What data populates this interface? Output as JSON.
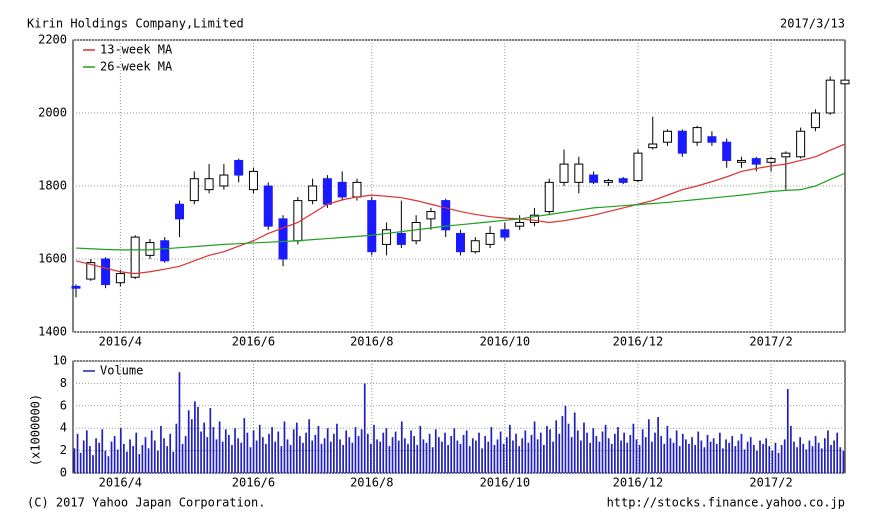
{
  "header": {
    "title": "Kirin Holdings Company,Limited",
    "date": "2017/3/13"
  },
  "footer": {
    "copyright": "(C) 2017 Yahoo Japan Corporation.",
    "url": "http://stocks.finance.yahoo.co.jp"
  },
  "chart_data": [
    {
      "type": "candlestick",
      "categories": [
        null,
        null,
        null,
        "2016/4",
        null,
        null,
        null,
        null,
        null,
        null,
        null,
        null,
        "2016/6",
        null,
        null,
        null,
        null,
        null,
        null,
        null,
        "2016/8",
        null,
        null,
        null,
        null,
        null,
        null,
        null,
        null,
        "2016/10",
        null,
        null,
        null,
        null,
        null,
        null,
        null,
        null,
        "2016/12",
        null,
        null,
        null,
        null,
        null,
        null,
        null,
        null,
        "2017/2",
        null,
        null,
        null,
        null,
        null
      ],
      "open": [
        1525,
        1545,
        1600,
        1535,
        1550,
        1610,
        1650,
        1750,
        1760,
        1790,
        1800,
        1870,
        1790,
        1800,
        1710,
        1650,
        1760,
        1820,
        1810,
        1770,
        1760,
        1640,
        1670,
        1650,
        1710,
        1760,
        1670,
        1620,
        1640,
        1680,
        1690,
        1700,
        1730,
        1810,
        1810,
        1830,
        1810,
        1820,
        1815,
        1905,
        1920,
        1950,
        1920,
        1935,
        1920,
        1865,
        1875,
        1865,
        1880,
        1880,
        1960,
        2000,
        2080
      ],
      "high": [
        1530,
        1600,
        1605,
        1570,
        1665,
        1655,
        1660,
        1760,
        1840,
        1860,
        1860,
        1875,
        1850,
        1810,
        1720,
        1770,
        1820,
        1830,
        1840,
        1820,
        1770,
        1700,
        1760,
        1720,
        1740,
        1765,
        1680,
        1660,
        1690,
        1700,
        1720,
        1740,
        1820,
        1900,
        1880,
        1840,
        1820,
        1825,
        1900,
        1990,
        1955,
        1955,
        1965,
        1950,
        1930,
        1880,
        1880,
        1880,
        1895,
        1960,
        2010,
        2100,
        2100
      ],
      "low": [
        1495,
        1540,
        1520,
        1525,
        1545,
        1600,
        1590,
        1660,
        1750,
        1780,
        1790,
        1810,
        1780,
        1680,
        1580,
        1640,
        1750,
        1740,
        1760,
        1760,
        1610,
        1610,
        1630,
        1640,
        1680,
        1660,
        1610,
        1615,
        1630,
        1650,
        1680,
        1690,
        1720,
        1800,
        1780,
        1805,
        1800,
        1805,
        1810,
        1900,
        1910,
        1880,
        1910,
        1910,
        1850,
        1850,
        1840,
        1840,
        1790,
        1875,
        1950,
        1995,
        2070
      ],
      "close": [
        1520,
        1590,
        1530,
        1560,
        1660,
        1645,
        1595,
        1710,
        1820,
        1820,
        1830,
        1830,
        1840,
        1690,
        1600,
        1760,
        1800,
        1750,
        1770,
        1810,
        1620,
        1680,
        1640,
        1700,
        1730,
        1680,
        1620,
        1650,
        1670,
        1660,
        1700,
        1720,
        1810,
        1860,
        1860,
        1810,
        1815,
        1810,
        1890,
        1915,
        1950,
        1890,
        1960,
        1920,
        1870,
        1870,
        1860,
        1875,
        1890,
        1950,
        2000,
        2090,
        2090
      ],
      "up_color": "#ffffff",
      "down_color": "#1a1aff",
      "series": [
        {
          "name": "13-week MA",
          "color": "#e03030",
          "values": [
            1595,
            1585,
            1575,
            1565,
            1560,
            1565,
            1572,
            1580,
            1595,
            1610,
            1620,
            1635,
            1650,
            1670,
            1685,
            1700,
            1725,
            1750,
            1762,
            1770,
            1775,
            1772,
            1768,
            1760,
            1750,
            1740,
            1730,
            1722,
            1716,
            1712,
            1710,
            1706,
            1700,
            1705,
            1712,
            1720,
            1730,
            1740,
            1750,
            1760,
            1775,
            1790,
            1800,
            1812,
            1825,
            1840,
            1848,
            1855,
            1860,
            1870,
            1880,
            1898,
            1915
          ]
        },
        {
          "name": "26-week MA",
          "color": "#20a020",
          "values": [
            1630,
            1628,
            1626,
            1625,
            1625,
            1625,
            1628,
            1631,
            1634,
            1637,
            1640,
            1642,
            1644,
            1646,
            1648,
            1650,
            1653,
            1656,
            1659,
            1662,
            1665,
            1670,
            1675,
            1680,
            1685,
            1690,
            1694,
            1698,
            1702,
            1706,
            1710,
            1716,
            1722,
            1728,
            1734,
            1740,
            1743,
            1746,
            1749,
            1752,
            1755,
            1759,
            1763,
            1767,
            1771,
            1775,
            1780,
            1785,
            1788,
            1790,
            1800,
            1818,
            1835
          ]
        }
      ],
      "ylim": [
        1400,
        2200
      ],
      "yticks": [
        1400,
        1600,
        1800,
        2000,
        2200
      ],
      "grid": true,
      "legend": "top-left"
    },
    {
      "type": "bar",
      "ylabel": "(x1000000)",
      "series": [
        {
          "name": "Volume",
          "color": "#2020c0",
          "values": [
            2.2,
            3.5,
            1.8,
            2.9,
            3.8,
            2.4,
            1.6,
            3.1,
            2.7,
            3.9,
            2.0,
            1.5,
            2.8,
            3.3,
            2.1,
            4.0,
            2.6,
            1.9,
            3.0,
            2.4,
            3.6,
            1.7,
            2.5,
            3.2,
            2.2,
            3.8,
            2.9,
            2.0,
            4.2,
            3.1,
            2.4,
            3.5,
            1.9,
            4.4,
            9.0,
            2.6,
            3.3,
            5.6,
            4.8,
            6.4,
            5.9,
            3.7,
            4.5,
            3.2,
            5.8,
            4.1,
            3.0,
            4.6,
            2.8,
            3.9,
            3.4,
            2.5,
            4.0,
            3.1,
            2.7,
            4.9,
            3.6,
            2.3,
            3.8,
            2.9,
            4.3,
            3.2,
            2.6,
            3.5,
            4.1,
            2.8,
            3.7,
            2.4,
            4.6,
            3.0,
            2.5,
            3.9,
            4.5,
            3.3,
            2.7,
            3.6,
            4.8,
            2.9,
            3.4,
            4.2,
            2.6,
            3.1,
            4.0,
            2.8,
            3.5,
            4.4,
            3.0,
            2.5,
            3.8,
            3.2,
            2.7,
            4.1,
            3.3,
            3.9,
            8.0,
            3.5,
            2.6,
            4.3,
            3.0,
            2.8,
            3.6,
            4.0,
            2.4,
            3.2,
            3.7,
            2.9,
            4.6,
            3.1,
            2.6,
            3.8,
            3.3,
            2.5,
            4.2,
            3.0,
            2.7,
            3.5,
            2.3,
            3.9,
            3.2,
            2.8,
            3.6,
            2.5,
            3.3,
            4.0,
            2.9,
            2.6,
            3.4,
            3.8,
            2.4,
            3.1,
            2.9,
            3.6,
            2.2,
            3.3,
            2.8,
            4.1,
            2.5,
            3.0,
            3.7,
            2.6,
            3.2,
            4.3,
            2.9,
            3.5,
            2.4,
            3.1,
            3.8,
            2.7,
            3.4,
            4.6,
            3.0,
            3.6,
            2.5,
            4.2,
            3.9,
            2.8,
            4.7,
            3.5,
            5.1,
            6.0,
            4.4,
            3.2,
            5.4,
            3.8,
            2.9,
            4.5,
            3.6,
            2.7,
            4.0,
            3.3,
            2.8,
            3.7,
            4.3,
            3.1,
            2.6,
            3.5,
            4.1,
            2.9,
            3.6,
            2.7,
            3.4,
            4.4,
            3.0,
            2.5,
            3.9,
            3.2,
            4.8,
            2.8,
            3.6,
            5.0,
            3.3,
            2.6,
            4.2,
            3.1,
            2.7,
            3.8,
            2.4,
            3.5,
            3.0,
            2.6,
            3.2,
            2.5,
            3.7,
            2.9,
            2.3,
            3.4,
            2.8,
            3.1,
            2.6,
            3.6,
            2.2,
            3.0,
            2.7,
            3.3,
            2.4,
            2.9,
            3.5,
            2.1,
            2.8,
            3.2,
            2.5,
            2.0,
            2.9,
            2.6,
            3.1,
            2.4,
            2.0,
            2.7,
            1.8,
            2.5,
            3.0,
            7.5,
            4.2,
            2.8,
            2.3,
            3.2,
            2.6,
            2.1,
            2.9,
            2.4,
            3.3,
            2.7,
            2.2,
            3.1,
            3.8,
            2.5,
            2.9,
            3.6,
            2.3,
            2.0
          ]
        }
      ],
      "ylim": [
        0,
        10
      ],
      "yticks": [
        0,
        2,
        4,
        6,
        8,
        10
      ],
      "grid": true,
      "legend": "top-left"
    }
  ]
}
